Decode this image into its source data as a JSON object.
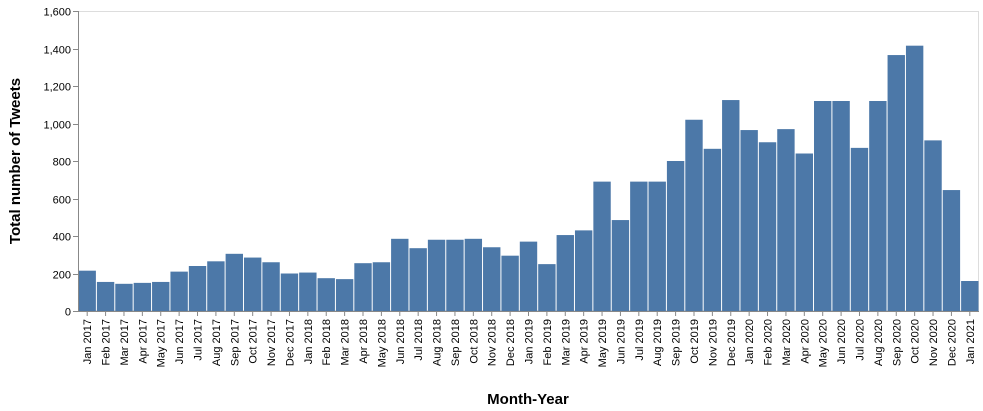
{
  "chart_data": {
    "type": "bar",
    "title": "",
    "xlabel": "Month-Year",
    "ylabel": "Total number of Tweets",
    "ylim": [
      0,
      1600
    ],
    "yticks": [
      0,
      200,
      400,
      600,
      800,
      1000,
      1200,
      1400,
      1600
    ],
    "ytick_labels": [
      "0",
      "200",
      "400",
      "600",
      "800",
      "1,000",
      "1,200",
      "1,400",
      "1,600"
    ],
    "grid": false,
    "bar_color": "#4c78a8",
    "categories": [
      "Jan 2017",
      "Feb 2017",
      "Mar 2017",
      "Apr 2017",
      "May 2017",
      "Jun 2017",
      "Jul 2017",
      "Aug 2017",
      "Sep 2017",
      "Oct 2017",
      "Nov 2017",
      "Dec 2017",
      "Jan 2018",
      "Feb 2018",
      "Mar 2018",
      "Apr 2018",
      "May 2018",
      "Jun 2018",
      "Jul 2018",
      "Aug 2018",
      "Sep 2018",
      "Oct 2018",
      "Nov 2018",
      "Dec 2018",
      "Jan 2019",
      "Feb 2019",
      "Mar 2019",
      "Apr 2019",
      "May 2019",
      "Jun 2019",
      "Jul 2019",
      "Aug 2019",
      "Sep 2019",
      "Oct 2019",
      "Nov 2019",
      "Dec 2019",
      "Jan 2020",
      "Feb 2020",
      "Mar 2020",
      "Apr 2020",
      "May 2020",
      "Jun 2020",
      "Jul 2020",
      "Aug 2020",
      "Sep 2020",
      "Oct 2020",
      "Nov 2020",
      "Dec 2020",
      "Jan 2021"
    ],
    "values": [
      215,
      155,
      145,
      150,
      155,
      210,
      240,
      265,
      305,
      285,
      260,
      200,
      205,
      175,
      170,
      255,
      260,
      385,
      335,
      380,
      380,
      385,
      340,
      295,
      370,
      250,
      405,
      430,
      690,
      485,
      690,
      690,
      800,
      1020,
      865,
      1125,
      965,
      900,
      970,
      840,
      1120,
      1120,
      870,
      1120,
      1365,
      1415,
      910,
      645,
      160
    ]
  }
}
